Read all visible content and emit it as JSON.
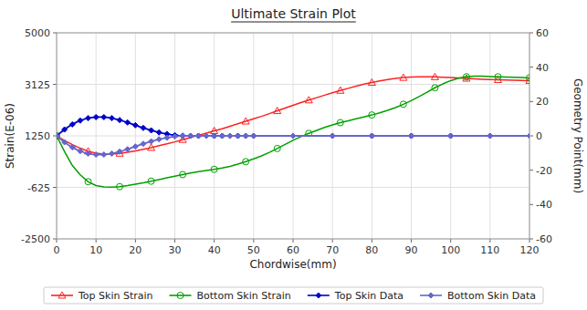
{
  "chart_data": {
    "type": "line",
    "title": "Ultimate Strain Plot",
    "xlabel": "Chordwise(mm)",
    "ylabel": "Strain(E-06)",
    "y2label": "Geometry Point(mm)",
    "xlim": [
      0,
      120
    ],
    "ylim": [
      -2500,
      5000
    ],
    "y2lim": [
      -60,
      60
    ],
    "xticks": [
      0,
      10,
      20,
      30,
      40,
      50,
      60,
      70,
      80,
      90,
      100,
      110,
      120
    ],
    "yticks": [
      -2500,
      -625,
      1250,
      3125,
      5000
    ],
    "y2ticks": [
      -60,
      -40,
      -20,
      0,
      20,
      40,
      60
    ],
    "grid": true,
    "legend": "bottom",
    "series": [
      {
        "name": "Top Skin Strain",
        "color": "#FF2020",
        "marker": "triangle",
        "axis": "y",
        "x": [
          0,
          2,
          4,
          6,
          8,
          10,
          12,
          14,
          16,
          18,
          20,
          22,
          24,
          26,
          28,
          30,
          32,
          34,
          36,
          38,
          40,
          42,
          44,
          46,
          48,
          50,
          52,
          54,
          56,
          58,
          60,
          62,
          64,
          66,
          68,
          70,
          72,
          74,
          76,
          78,
          80,
          82,
          84,
          86,
          88,
          90,
          92,
          94,
          96,
          98,
          100,
          102,
          104,
          106,
          108,
          110,
          112,
          114,
          116,
          118,
          120
        ],
        "values": [
          1250,
          1080,
          930,
          800,
          690,
          620,
          590,
          590,
          610,
          650,
          700,
          760,
          820,
          890,
          960,
          1030,
          1110,
          1190,
          1270,
          1350,
          1430,
          1510,
          1600,
          1690,
          1780,
          1870,
          1960,
          2060,
          2160,
          2260,
          2360,
          2460,
          2550,
          2640,
          2730,
          2820,
          2900,
          2980,
          3060,
          3130,
          3190,
          3250,
          3300,
          3340,
          3370,
          3390,
          3400,
          3400,
          3395,
          3385,
          3370,
          3355,
          3340,
          3325,
          3310,
          3300,
          3290,
          3280,
          3275,
          3265,
          3260
        ]
      },
      {
        "name": "Bottom Skin Strain",
        "color": "#00A000",
        "marker": "circle",
        "axis": "y",
        "x": [
          0,
          2,
          4,
          6,
          8,
          10,
          12,
          14,
          16,
          18,
          20,
          22,
          24,
          26,
          28,
          30,
          32,
          34,
          36,
          38,
          40,
          42,
          44,
          46,
          48,
          50,
          52,
          54,
          56,
          58,
          60,
          62,
          64,
          66,
          68,
          70,
          72,
          74,
          76,
          78,
          80,
          82,
          84,
          86,
          88,
          90,
          92,
          94,
          96,
          98,
          100,
          102,
          104,
          106,
          108,
          110,
          112,
          114,
          116,
          118,
          120
        ],
        "values": [
          1250,
          680,
          170,
          -170,
          -420,
          -560,
          -610,
          -620,
          -600,
          -560,
          -510,
          -460,
          -400,
          -340,
          -280,
          -220,
          -160,
          -100,
          -50,
          -10,
          30,
          80,
          140,
          220,
          310,
          410,
          520,
          650,
          790,
          940,
          1090,
          1220,
          1340,
          1450,
          1555,
          1650,
          1730,
          1800,
          1870,
          1940,
          2010,
          2090,
          2180,
          2280,
          2400,
          2530,
          2680,
          2840,
          3000,
          3140,
          3260,
          3350,
          3400,
          3420,
          3420,
          3410,
          3400,
          3390,
          3380,
          3370,
          3360
        ]
      },
      {
        "name": "Top Skin Data",
        "color": "#0000CC",
        "marker": "diamond",
        "axis": "y2",
        "x": [
          0,
          1,
          2,
          3,
          4,
          5,
          6,
          7,
          8,
          9,
          10,
          11,
          12,
          13,
          14,
          15,
          16,
          17,
          18,
          19,
          20,
          21,
          22,
          23,
          24,
          25,
          26,
          27,
          28,
          29,
          30,
          31,
          32,
          33,
          34,
          35,
          36,
          37,
          38,
          39,
          40,
          41,
          42,
          43,
          44,
          45,
          46,
          47,
          48,
          49,
          50,
          55,
          60,
          65,
          70,
          75,
          80,
          85,
          90,
          95,
          100,
          105,
          110,
          115,
          120
        ],
        "values": [
          0,
          1.9,
          3.7,
          5.3,
          6.7,
          7.9,
          8.9,
          9.7,
          10.3,
          10.7,
          10.9,
          11.0,
          10.9,
          10.7,
          10.3,
          9.8,
          9.2,
          8.5,
          7.8,
          7.0,
          6.2,
          5.4,
          4.6,
          3.9,
          3.2,
          2.6,
          2.0,
          1.5,
          1.1,
          0.7,
          0.4,
          0.2,
          0.1,
          0.0,
          0.0,
          0.0,
          0.0,
          0.0,
          0.0,
          0.0,
          0.0,
          0.0,
          0.0,
          0.0,
          0.0,
          0.0,
          0.0,
          0.0,
          0.0,
          0.0,
          0.0,
          0.0,
          0.0,
          0.0,
          0.0,
          0.0,
          0.0,
          0.0,
          0.0,
          0.0,
          0.0,
          0.0,
          0.0,
          0.0,
          0.0
        ]
      },
      {
        "name": "Bottom Skin Data",
        "color": "#6666CC",
        "marker": "diamond",
        "axis": "y2",
        "x": [
          0,
          1,
          2,
          3,
          4,
          5,
          6,
          7,
          8,
          9,
          10,
          11,
          12,
          13,
          14,
          15,
          16,
          17,
          18,
          19,
          20,
          21,
          22,
          23,
          24,
          25,
          26,
          27,
          28,
          29,
          30,
          31,
          32,
          33,
          34,
          35,
          36,
          37,
          38,
          39,
          40,
          41,
          42,
          43,
          44,
          45,
          46,
          47,
          48,
          49,
          50,
          55,
          60,
          65,
          70,
          75,
          80,
          85,
          90,
          95,
          100,
          105,
          110,
          115,
          120
        ],
        "values": [
          0,
          -1.9,
          -3.7,
          -5.3,
          -6.7,
          -7.9,
          -8.9,
          -9.7,
          -10.3,
          -10.7,
          -10.9,
          -11.0,
          -10.9,
          -10.7,
          -10.3,
          -9.8,
          -9.2,
          -8.5,
          -7.8,
          -7.0,
          -6.2,
          -5.4,
          -4.6,
          -3.9,
          -3.2,
          -2.6,
          -2.0,
          -1.5,
          -1.1,
          -0.7,
          -0.4,
          -0.2,
          -0.1,
          0.0,
          0.0,
          0.0,
          0.0,
          0.0,
          0.0,
          0.0,
          0.0,
          0.0,
          0.0,
          0.0,
          0.0,
          0.0,
          0.0,
          0.0,
          0.0,
          0.0,
          0.0,
          0.0,
          0.0,
          0.0,
          0.0,
          0.0,
          0.0,
          0.0,
          0.0,
          0.0,
          0.0,
          0.0,
          0.0,
          0.0,
          0.0
        ]
      }
    ]
  }
}
